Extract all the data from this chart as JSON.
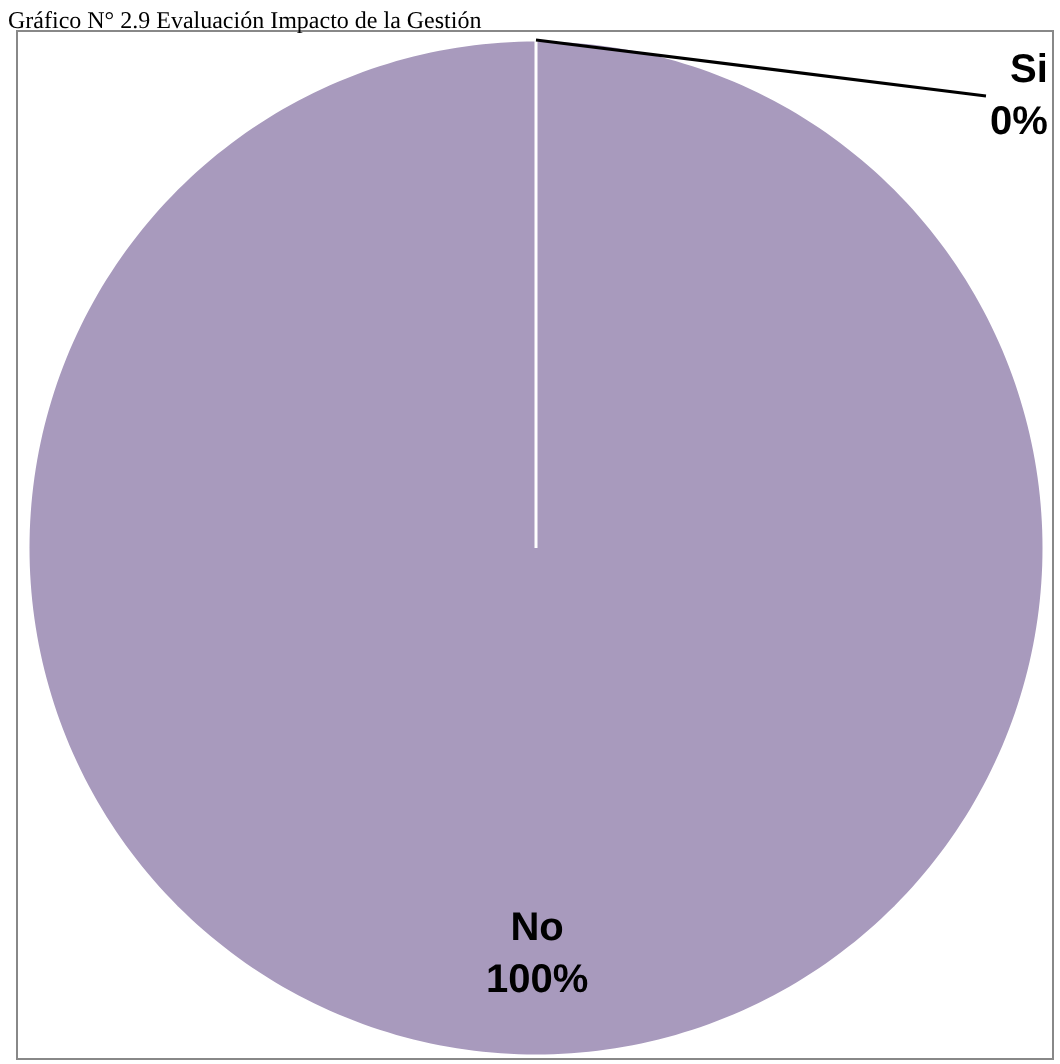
{
  "chart_data": {
    "type": "pie",
    "title": "Gráfico N° 2.9 Evaluación Impacto de la Gestión",
    "categories": [
      "Si",
      "No"
    ],
    "values": [
      0,
      100
    ],
    "value_labels": [
      "0%",
      "100%"
    ],
    "colors": [
      "#a89abd",
      "#a89abd"
    ],
    "legend": false
  }
}
